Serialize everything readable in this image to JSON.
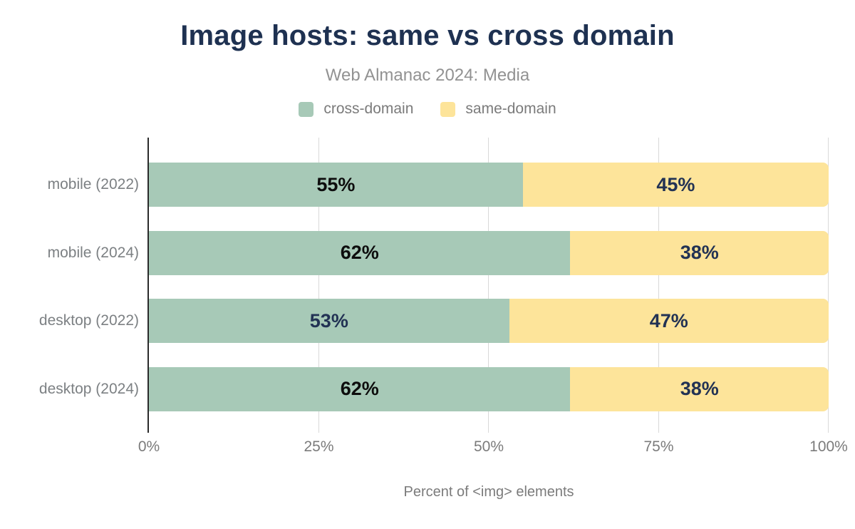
{
  "header": {
    "title": "Image hosts: same vs cross domain",
    "subtitle": "Web Almanac 2024: Media"
  },
  "colors": {
    "title": "#1e3151",
    "subtitle_gray": "#929292",
    "text_gray": "#7b7b7b",
    "cross_domain_green": "#a7c9b7",
    "same_domain_yellow": "#fde49a",
    "navy_label": "#223254",
    "black_label": "#0d0d0d",
    "gridline": "#d9d9d9",
    "axis_line": "#2a2a2a"
  },
  "chart_data": {
    "type": "bar",
    "stacked": true,
    "orientation": "horizontal",
    "title": "Image hosts: same vs cross domain",
    "subtitle": "Web Almanac 2024: Media",
    "xlabel": "Percent of <img> elements",
    "ylabel": "",
    "xlim": [
      0,
      100
    ],
    "grid": true,
    "legend_position": "top-center",
    "categories": [
      "mobile (2022)",
      "mobile (2024)",
      "desktop (2022)",
      "desktop (2024)"
    ],
    "series": [
      {
        "name": "cross-domain",
        "color": "#a7c9b7",
        "values": [
          55,
          62,
          53,
          62
        ],
        "label_colors": [
          "#0d0d0d",
          "#0d0d0d",
          "#223254",
          "#0d0d0d"
        ]
      },
      {
        "name": "same-domain",
        "color": "#fde49a",
        "values": [
          45,
          38,
          47,
          38
        ],
        "label_colors": [
          "#223254",
          "#223254",
          "#223254",
          "#223254"
        ]
      }
    ],
    "x_ticks": [
      "0%",
      "25%",
      "50%",
      "75%",
      "100%"
    ]
  }
}
